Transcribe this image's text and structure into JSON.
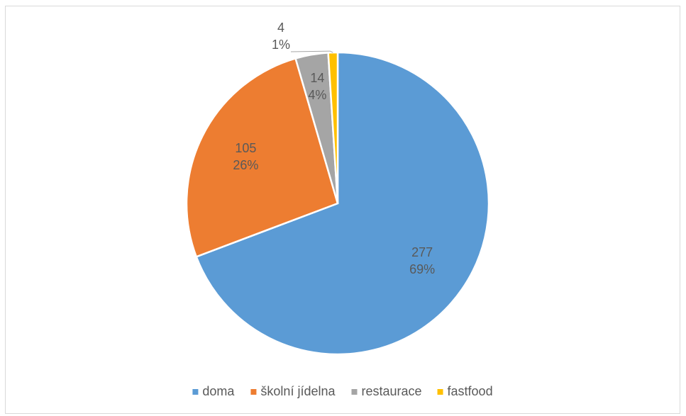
{
  "chart_data": {
    "type": "pie",
    "categories": [
      "doma",
      "školní jídelna",
      "restaurace",
      "fastfood"
    ],
    "values": [
      277,
      105,
      14,
      4
    ],
    "percent_labels": [
      "69%",
      "26%",
      "4%",
      "1%"
    ],
    "colors": [
      "#5b9bd5",
      "#ed7d31",
      "#a5a5a5",
      "#ffc000"
    ],
    "legend": "bottom"
  }
}
